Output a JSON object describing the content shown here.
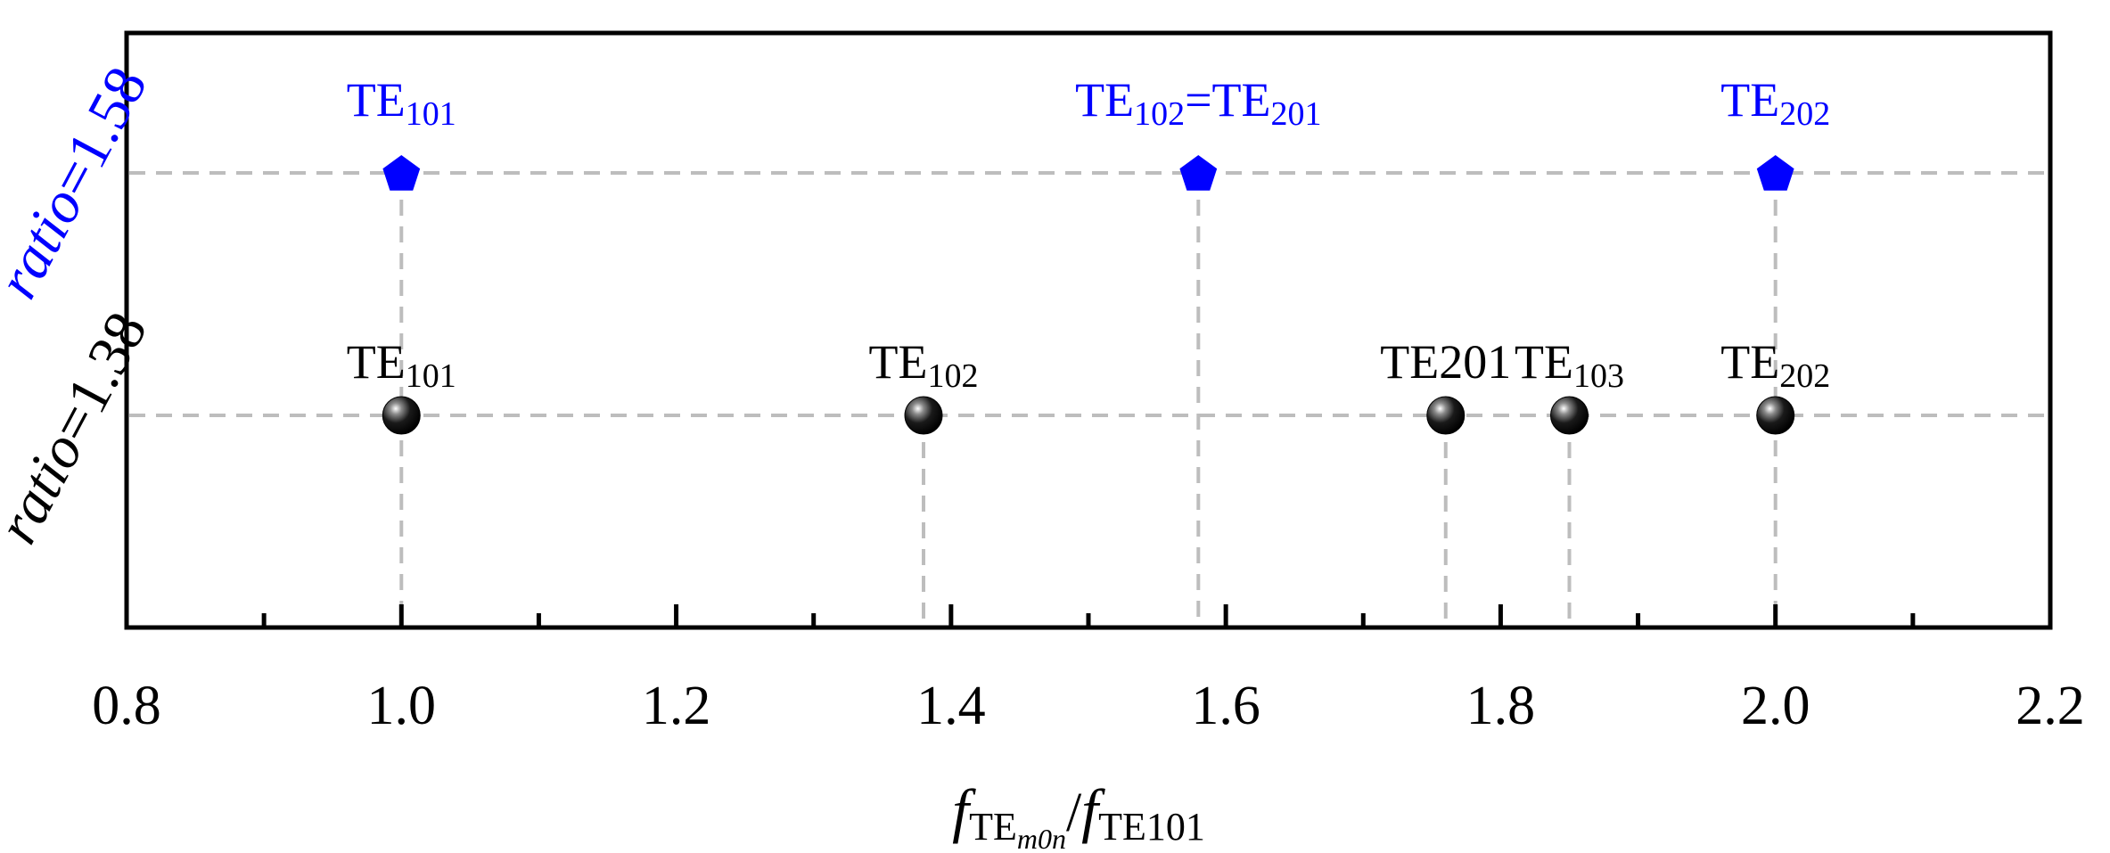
{
  "chart_data": {
    "type": "scatter",
    "title": "",
    "xlabel": {
      "base1": "f",
      "sub1": "TE",
      "subsub1": "m0n",
      "sep": "/",
      "base2": "f",
      "sub2": "TE",
      "subsub2": "101"
    },
    "ylabel": "",
    "xlim": [
      0.8,
      2.2
    ],
    "x_major_ticks": [
      0.8,
      1.0,
      1.2,
      1.4,
      1.6,
      1.8,
      2.0,
      2.2
    ],
    "x_tick_labels": [
      "0.8",
      "1.0",
      "1.2",
      "1.4",
      "1.6",
      "1.8",
      "2.0",
      "2.2"
    ],
    "x_minor_ticks": [
      0.9,
      1.1,
      1.3,
      1.5,
      1.7,
      1.9,
      2.1
    ],
    "grid": "dashed reference lines at each mode",
    "series": [
      {
        "name": "ratio=1.58",
        "label_parts": {
          "italic": "ratio",
          "rest": "=1.58"
        },
        "color": "#0000ff",
        "marker": "pentagon",
        "points": [
          {
            "x": 1.0,
            "label": {
              "base": "TE",
              "sub": "101"
            }
          },
          {
            "x": 1.58,
            "label": {
              "base": "TE",
              "sub": "102",
              "mid": "=TE",
              "sub2": "201"
            }
          },
          {
            "x": 2.0,
            "label": {
              "base": "TE",
              "sub": "202"
            }
          }
        ]
      },
      {
        "name": "ratio=1.38",
        "label_parts": {
          "italic": "ratio",
          "rest": "=1.38"
        },
        "color": "#000000",
        "marker": "sphere",
        "points": [
          {
            "x": 1.0,
            "label": {
              "base": "TE",
              "sub": "101"
            }
          },
          {
            "x": 1.38,
            "label": {
              "base": "TE",
              "sub": "102"
            }
          },
          {
            "x": 1.76,
            "label": {
              "base": "TE201",
              "sub": ""
            }
          },
          {
            "x": 1.85,
            "label": {
              "base": "TE",
              "sub": "103"
            }
          },
          {
            "x": 2.0,
            "label": {
              "base": "TE",
              "sub": "202"
            }
          }
        ]
      }
    ]
  }
}
